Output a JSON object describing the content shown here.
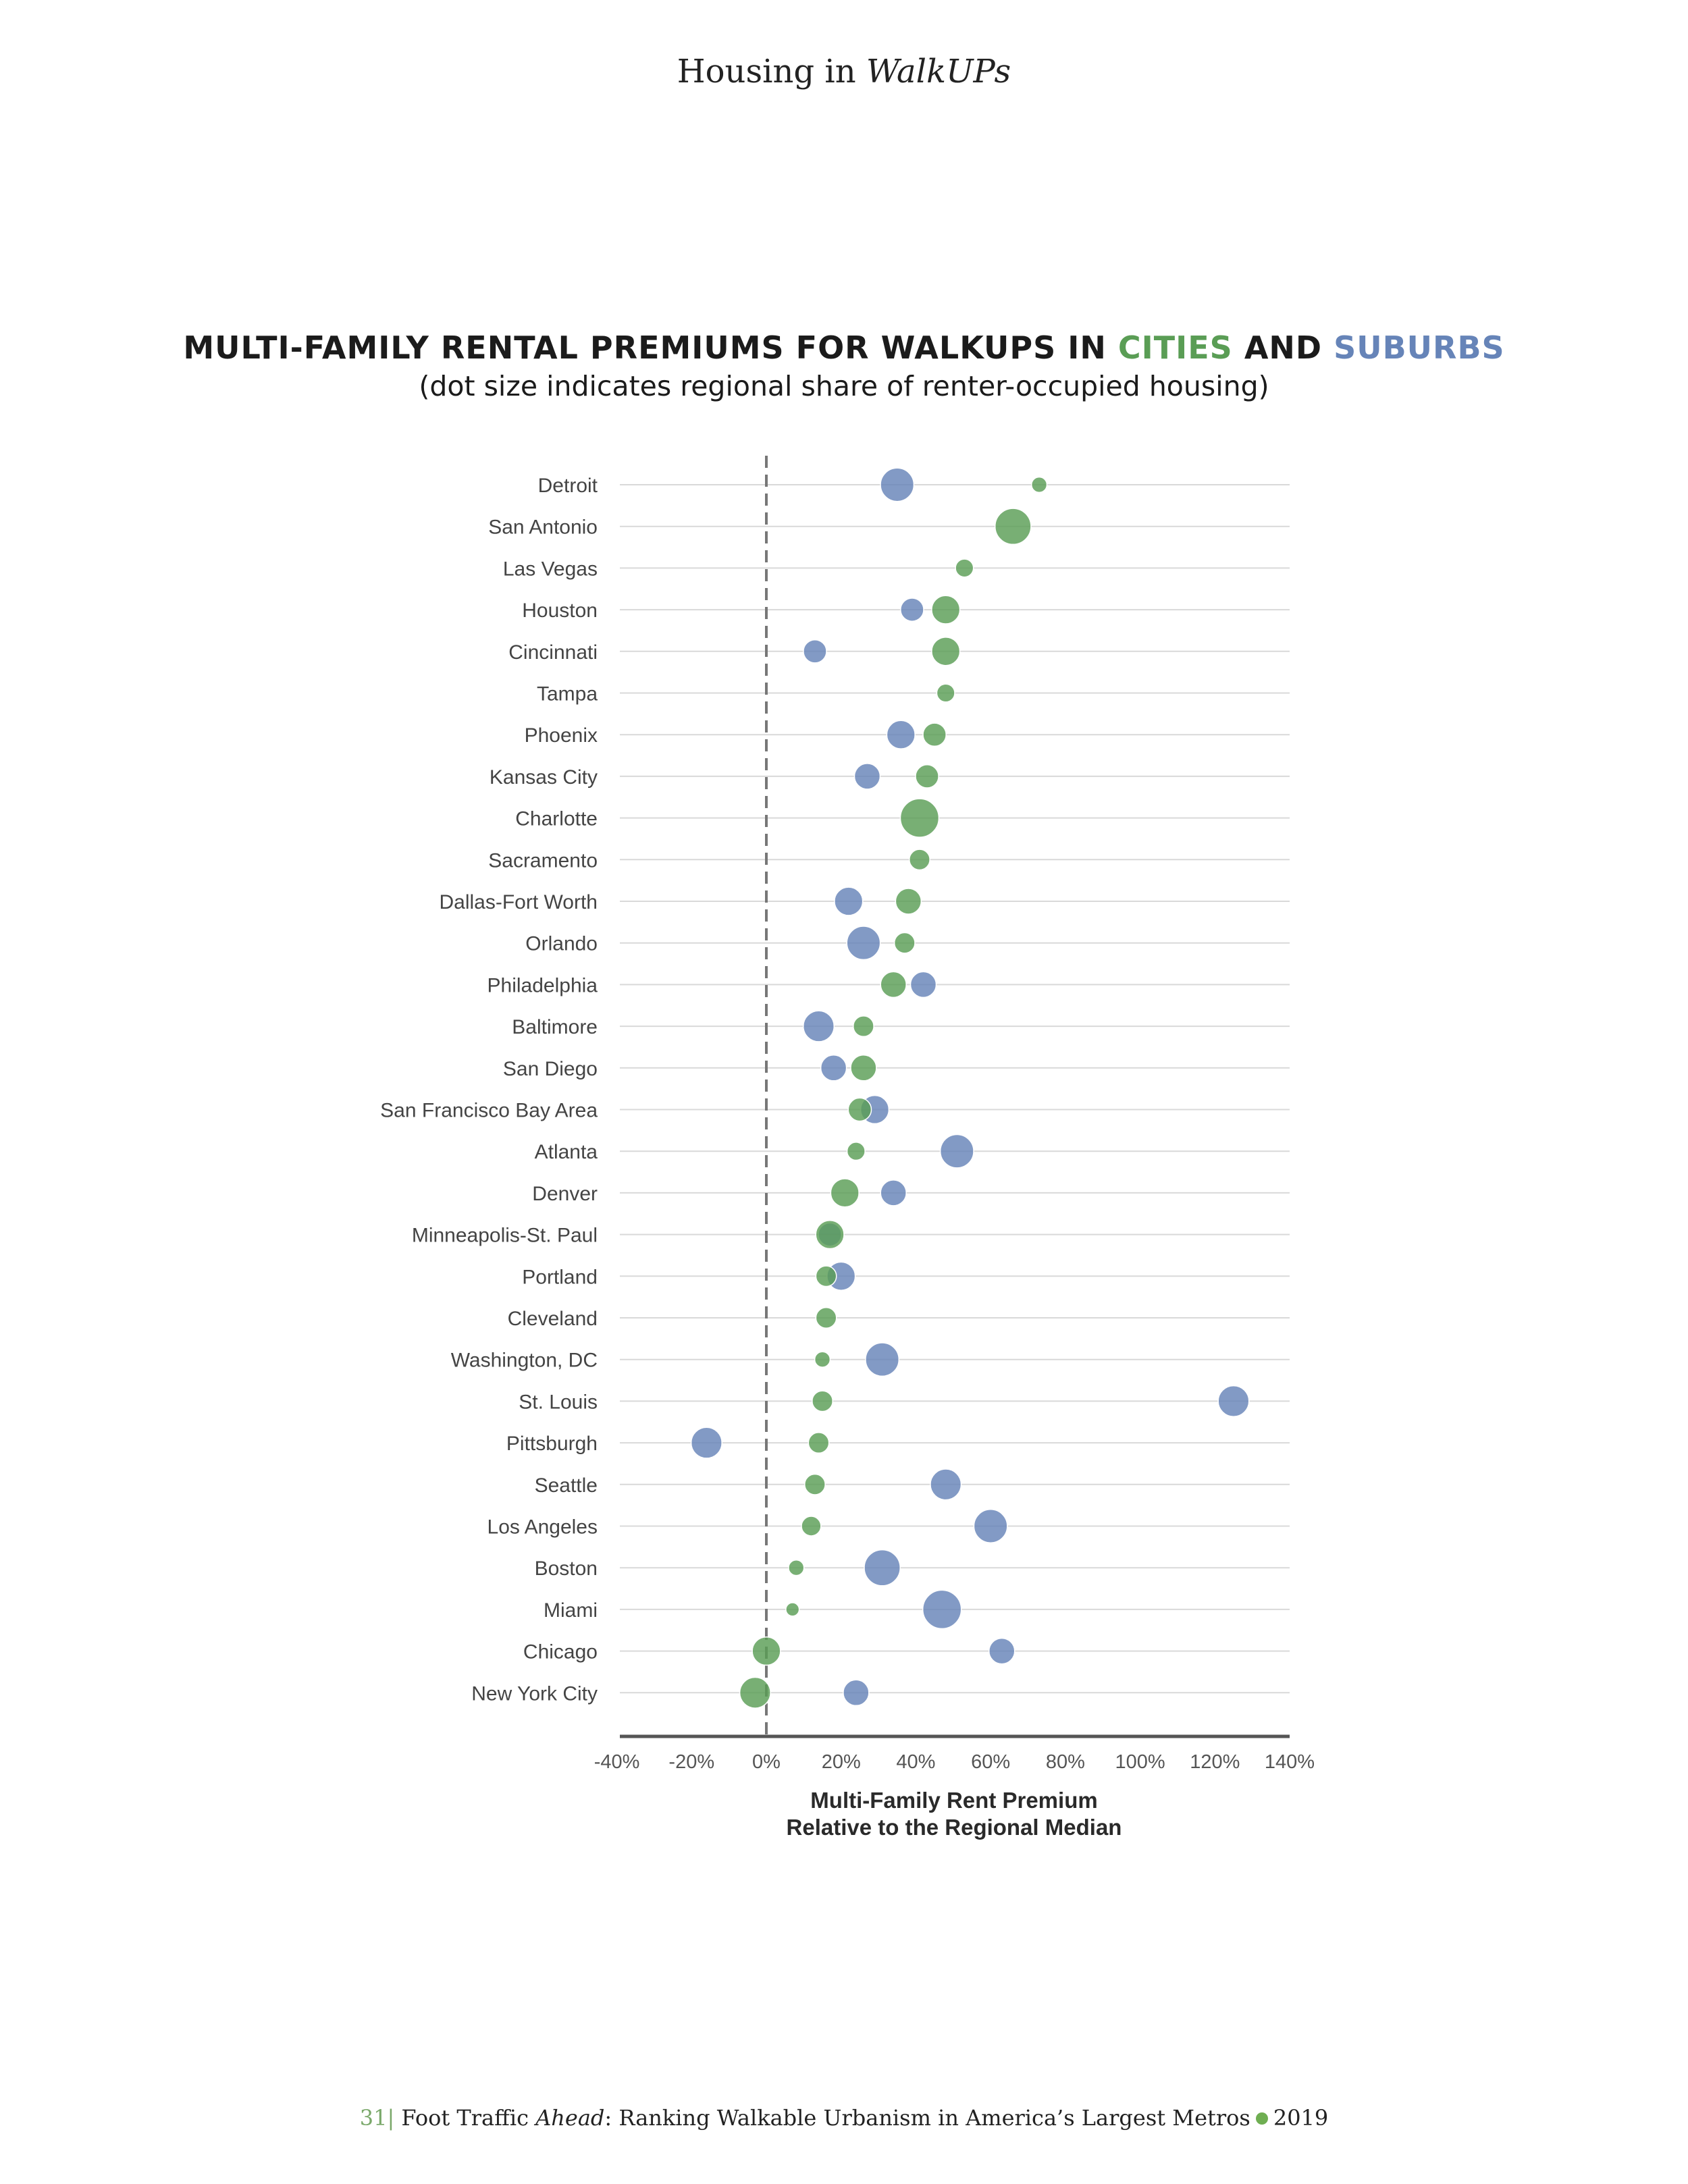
{
  "header": {
    "prefix": "Housing in ",
    "italic": "WalkUPs"
  },
  "title": {
    "part1": "MULTI-FAMILY RENTAL PREMIUMS FOR WALKUPS IN ",
    "cities": "CITIES",
    "and": " AND ",
    "suburbs": "SUBURBS",
    "subtitle": "(dot size indicates regional share of renter-occupied housing)"
  },
  "colors": {
    "cities": "#5a9d55",
    "suburbs": "#6684b8",
    "axis": "#555555",
    "grid": "#d9d9d9"
  },
  "chart_data": {
    "type": "scatter",
    "xlabel_line1": "Multi-Family Rent Premium",
    "xlabel_line2": "Relative to the Regional Median",
    "xlim": [
      -40,
      140
    ],
    "xticks": [
      -40,
      -20,
      0,
      20,
      40,
      60,
      80,
      100,
      120,
      140
    ],
    "xtick_labels": [
      "-40%",
      "-20%",
      "0%",
      "20%",
      "40%",
      "60%",
      "80%",
      "100%",
      "120%",
      "140%"
    ],
    "reference_line": 0,
    "grid": true,
    "categories": [
      "Detroit",
      "San Antonio",
      "Las Vegas",
      "Houston",
      "Cincinnati",
      "Tampa",
      "Phoenix",
      "Kansas City",
      "Charlotte",
      "Sacramento",
      "Dallas-Fort Worth",
      "Orlando",
      "Philadelphia",
      "Baltimore",
      "San Diego",
      "San Francisco Bay Area",
      "Atlanta",
      "Denver",
      "Minneapolis-St. Paul",
      "Portland",
      "Cleveland",
      "Washington, DC",
      "St. Louis",
      "Pittsburgh",
      "Seattle",
      "Los Angeles",
      "Boston",
      "Miami",
      "Chicago",
      "New York City"
    ],
    "size_note": "dot size indicates regional share of renter-occupied housing",
    "series": [
      {
        "key": "suburbs",
        "values": [
          35,
          null,
          null,
          39,
          13,
          null,
          36,
          27,
          null,
          null,
          22,
          26,
          42,
          14,
          18,
          29,
          51,
          34,
          17,
          20,
          null,
          31,
          125,
          -16,
          48,
          60,
          31,
          47,
          63,
          24
        ],
        "sizes": [
          0.65,
          null,
          null,
          0.45,
          0.45,
          null,
          0.55,
          0.5,
          null,
          null,
          0.55,
          0.65,
          0.5,
          0.6,
          0.5,
          0.55,
          0.65,
          0.5,
          0.45,
          0.55,
          null,
          0.65,
          0.6,
          0.6,
          0.6,
          0.65,
          0.7,
          0.75,
          0.5,
          0.5
        ]
      },
      {
        "key": "cities",
        "values": [
          73,
          66,
          53,
          48,
          48,
          48,
          45,
          43,
          41,
          41,
          38,
          37,
          34,
          26,
          26,
          25,
          24,
          21,
          17,
          16,
          16,
          15,
          15,
          14,
          13,
          12,
          8,
          7,
          0,
          -3
        ],
        "sizes": [
          0.3,
          0.7,
          0.35,
          0.55,
          0.55,
          0.35,
          0.45,
          0.45,
          0.75,
          0.4,
          0.5,
          0.4,
          0.5,
          0.4,
          0.5,
          0.45,
          0.35,
          0.55,
          0.55,
          0.4,
          0.4,
          0.3,
          0.4,
          0.4,
          0.4,
          0.38,
          0.3,
          0.26,
          0.55,
          0.6
        ]
      }
    ]
  },
  "footer": {
    "page": "31|",
    "text1": " Foot Traffic ",
    "italic": "Ahead",
    "text2": ": Ranking Walkable Urbanism in America’s Largest Metros",
    "year": "2019"
  }
}
